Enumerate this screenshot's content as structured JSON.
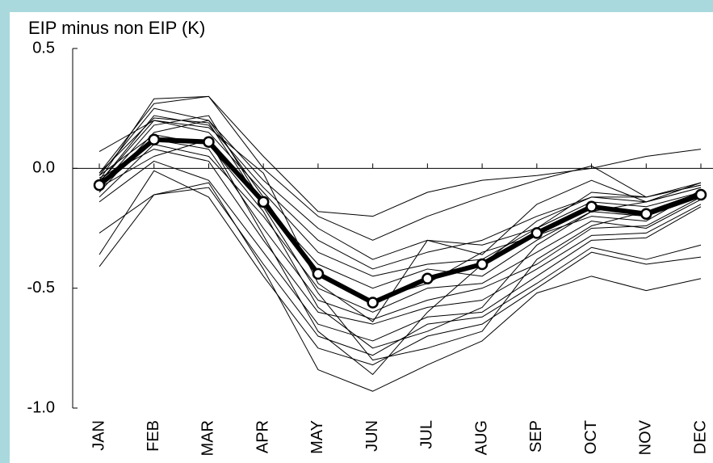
{
  "chart_data": {
    "type": "line",
    "title": "EIP minus non EIP (K)",
    "categories": [
      "JAN",
      "FEB",
      "MAR",
      "APR",
      "MAY",
      "JUN",
      "JUL",
      "AUG",
      "SEP",
      "OCT",
      "NOV",
      "DEC"
    ],
    "ylim": [
      -1.0,
      0.5
    ],
    "yticks": [
      0.5,
      {
        "value": 0,
        "label": "0.0"
      },
      -0.5,
      {
        "value": -1,
        "label": "-1.0"
      }
    ],
    "series": [
      {
        "color": "#000000",
        "values": [
          -0.05,
          0.29,
          0.3,
          0.05,
          -0.18,
          -0.2,
          -0.1,
          -0.05,
          -0.03,
          0.0,
          0.05,
          0.08
        ]
      },
      {
        "color": "#000000",
        "values": [
          -0.02,
          0.27,
          0.3,
          0.0,
          -0.2,
          -0.3,
          -0.2,
          -0.12,
          -0.05,
          0.01,
          -0.12,
          -0.07
        ]
      },
      {
        "color": "#000000",
        "values": [
          -0.03,
          0.25,
          0.2,
          -0.05,
          -0.25,
          -0.38,
          -0.3,
          -0.32,
          -0.25,
          -0.1,
          -0.12,
          -0.06
        ]
      },
      {
        "color": "#000000",
        "values": [
          -0.06,
          0.22,
          0.18,
          -0.08,
          -0.3,
          -0.42,
          -0.35,
          -0.3,
          -0.2,
          -0.12,
          -0.14,
          -0.08
        ]
      },
      {
        "color": "#000000",
        "values": [
          0.07,
          0.2,
          0.15,
          -0.1,
          -0.35,
          -0.45,
          -0.4,
          -0.38,
          -0.25,
          -0.14,
          -0.16,
          -0.1
        ]
      },
      {
        "color": "#000000",
        "values": [
          -0.08,
          0.18,
          0.22,
          -0.15,
          -0.4,
          -0.5,
          -0.42,
          -0.45,
          -0.3,
          -0.18,
          -0.2,
          -0.12
        ]
      },
      {
        "color": "#000000",
        "values": [
          -0.1,
          0.15,
          0.2,
          -0.12,
          -0.45,
          -0.55,
          -0.48,
          -0.35,
          -0.28,
          -0.2,
          -0.22,
          -0.09
        ]
      },
      {
        "color": "#000000",
        "values": [
          -0.12,
          0.1,
          0.05,
          -0.2,
          -0.5,
          -0.6,
          -0.5,
          -0.48,
          -0.35,
          -0.22,
          -0.25,
          -0.13
        ]
      },
      {
        "color": "#000000",
        "values": [
          -0.05,
          0.12,
          0.08,
          -0.25,
          -0.55,
          -0.63,
          -0.55,
          -0.5,
          -0.4,
          -0.25,
          -0.24,
          -0.12
        ]
      },
      {
        "color": "#000000",
        "values": [
          -0.04,
          0.08,
          0.03,
          -0.3,
          -0.6,
          -0.65,
          -0.58,
          -0.55,
          -0.42,
          -0.28,
          -0.27,
          -0.15
        ]
      },
      {
        "color": "#000000",
        "values": [
          -0.14,
          0.03,
          -0.05,
          -0.35,
          -0.65,
          -0.72,
          -0.62,
          -0.6,
          -0.45,
          -0.3,
          -0.29,
          -0.16
        ]
      },
      {
        "color": "#000000",
        "values": [
          -0.27,
          -0.11,
          -0.08,
          -0.4,
          -0.7,
          -0.78,
          -0.65,
          -0.62,
          -0.48,
          -0.33,
          -0.38,
          -0.32
        ]
      },
      {
        "color": "#000000",
        "values": [
          -0.36,
          -0.01,
          -0.12,
          -0.45,
          -0.75,
          -0.82,
          -0.7,
          -0.65,
          -0.5,
          -0.35,
          -0.4,
          -0.37
        ]
      },
      {
        "color": "#000000",
        "values": [
          -0.41,
          -0.11,
          -0.06,
          -0.42,
          -0.84,
          -0.93,
          -0.82,
          -0.72,
          -0.52,
          -0.45,
          -0.51,
          -0.46
        ]
      },
      {
        "color": "#000000",
        "values": [
          -0.03,
          0.14,
          0.1,
          -0.18,
          -0.58,
          -0.75,
          -0.68,
          -0.58,
          -0.32,
          -0.18,
          -0.14,
          -0.06
        ]
      },
      {
        "color": "#000000",
        "values": [
          -0.08,
          0.05,
          0.12,
          -0.28,
          -0.68,
          -0.86,
          -0.6,
          -0.4,
          -0.22,
          -0.12,
          -0.12,
          -0.07
        ]
      },
      {
        "color": "#000000",
        "values": [
          -0.06,
          0.2,
          0.17,
          -0.02,
          -0.48,
          -0.64,
          -0.3,
          -0.36,
          -0.15,
          -0.05,
          -0.14,
          -0.08
        ]
      },
      {
        "color": "#000000",
        "values": [
          -0.02,
          0.21,
          0.19,
          -0.16,
          -0.52,
          -0.8,
          -0.75,
          -0.68,
          -0.38,
          -0.24,
          -0.18,
          -0.1
        ]
      },
      {
        "color": "#000000",
        "markers": true,
        "values": [
          -0.07,
          0.12,
          0.11,
          -0.14,
          -0.44,
          -0.56,
          -0.46,
          -0.4,
          -0.27,
          -0.16,
          -0.19,
          -0.11
        ]
      }
    ]
  }
}
